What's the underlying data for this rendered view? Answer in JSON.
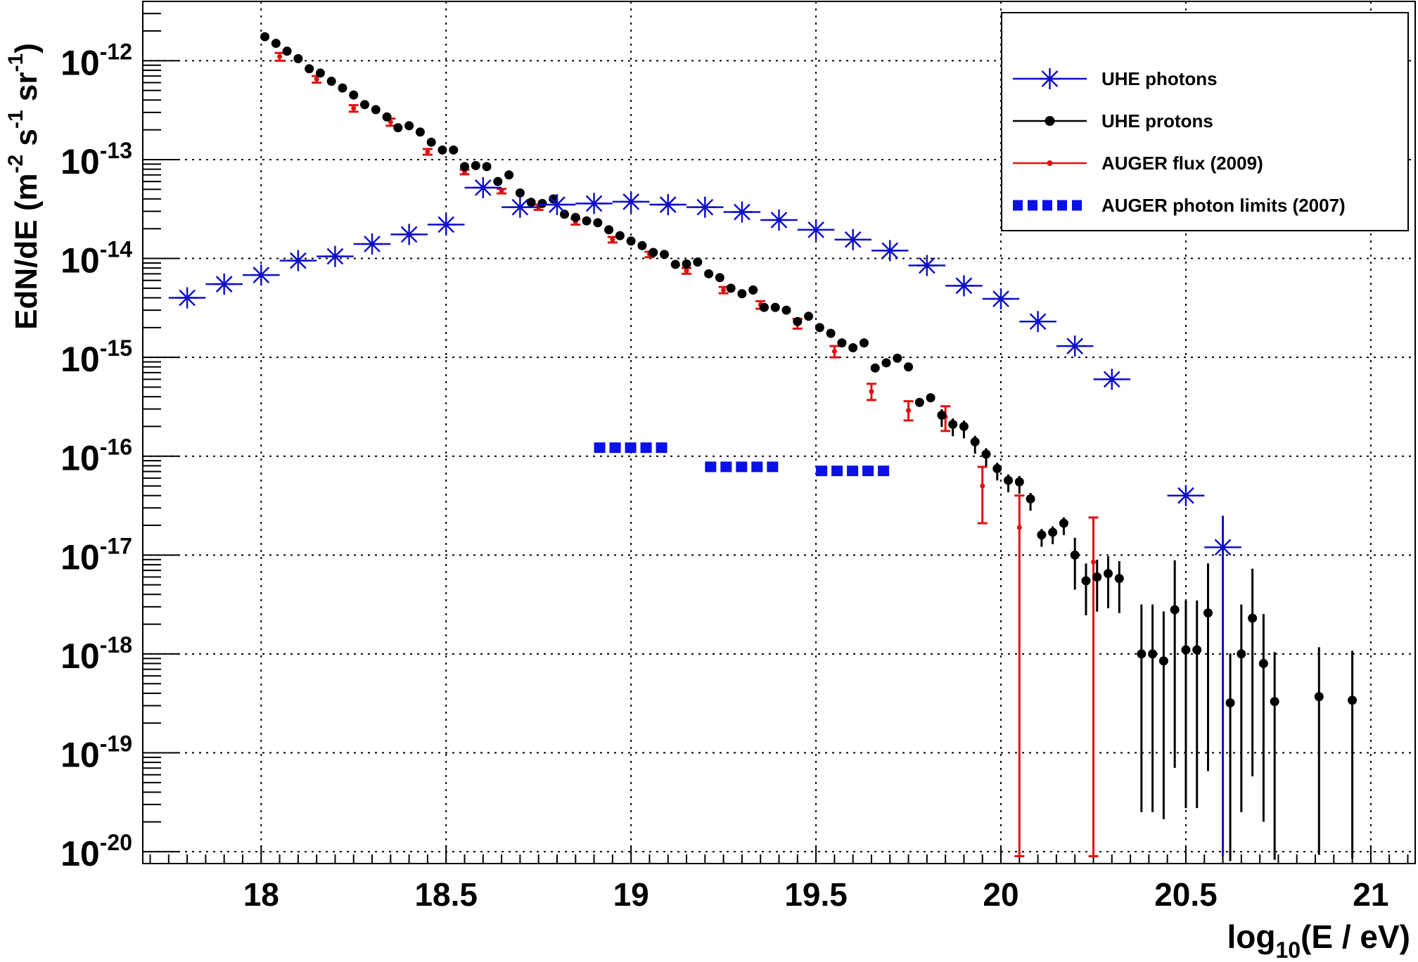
{
  "chart_data": {
    "type": "scatter",
    "xlabel": "log10(E / eV)",
    "ylabel": "EdN/dE (m-2 s-1 sr-1)",
    "x_label_parts": {
      "base": "log",
      "sub": "10",
      "rest": "(E / eV)"
    },
    "y_label_parts": [
      "EdN/dE (m",
      "-2",
      " s",
      "-1",
      " sr",
      "-1",
      ")"
    ],
    "xlim": [
      17.68,
      21.12
    ],
    "ylim_log10": [
      -20.12,
      -11.4
    ],
    "y_scale": "log",
    "grid": true,
    "legend_position": "top-right",
    "x_ticks": [
      "18",
      "18.5",
      "19",
      "19.5",
      "20",
      "20.5",
      "21"
    ],
    "y_ticks": [
      {
        "base": "10",
        "exp": "-12",
        "value": -12
      },
      {
        "base": "10",
        "exp": "-13",
        "value": -13
      },
      {
        "base": "10",
        "exp": "-14",
        "value": -14
      },
      {
        "base": "10",
        "exp": "-15",
        "value": -15
      },
      {
        "base": "10",
        "exp": "-16",
        "value": -16
      },
      {
        "base": "10",
        "exp": "-17",
        "value": -17
      },
      {
        "base": "10",
        "exp": "-18",
        "value": -18
      },
      {
        "base": "10",
        "exp": "-19",
        "value": -19
      },
      {
        "base": "10",
        "exp": "-20",
        "value": -20
      }
    ],
    "series": [
      {
        "name": "UHE photons",
        "style": "star",
        "color": "#1010c8",
        "xerr": 0.05,
        "points": [
          {
            "x": 17.8,
            "y": 4e-15
          },
          {
            "x": 17.9,
            "y": 5.5e-15
          },
          {
            "x": 18.0,
            "y": 6.8e-15
          },
          {
            "x": 18.1,
            "y": 9.5e-15
          },
          {
            "x": 18.2,
            "y": 1.05e-14
          },
          {
            "x": 18.3,
            "y": 1.4e-14
          },
          {
            "x": 18.4,
            "y": 1.75e-14
          },
          {
            "x": 18.5,
            "y": 2.2e-14
          },
          {
            "x": 18.6,
            "y": 5.2e-14
          },
          {
            "x": 18.7,
            "y": 3.3e-14
          },
          {
            "x": 18.8,
            "y": 3.5e-14
          },
          {
            "x": 18.9,
            "y": 3.6e-14
          },
          {
            "x": 19.0,
            "y": 3.75e-14
          },
          {
            "x": 19.1,
            "y": 3.5e-14
          },
          {
            "x": 19.2,
            "y": 3.3e-14
          },
          {
            "x": 19.3,
            "y": 2.95e-14
          },
          {
            "x": 19.4,
            "y": 2.45e-14
          },
          {
            "x": 19.5,
            "y": 1.95e-14
          },
          {
            "x": 19.6,
            "y": 1.55e-14
          },
          {
            "x": 19.7,
            "y": 1.2e-14
          },
          {
            "x": 19.8,
            "y": 8.5e-15
          },
          {
            "x": 19.9,
            "y": 5.3e-15
          },
          {
            "x": 20.0,
            "y": 3.9e-15
          },
          {
            "x": 20.1,
            "y": 2.3e-15
          },
          {
            "x": 20.2,
            "y": 1.3e-15
          },
          {
            "x": 20.3,
            "y": 6e-16
          },
          {
            "x": 20.5,
            "y": 4e-17
          },
          {
            "x": 20.6,
            "y": 1.2e-17,
            "ylo": 9e-21,
            "yhi": 2.5e-17
          }
        ]
      },
      {
        "name": "UHE protons",
        "style": "dot",
        "color": "#000000",
        "points": [
          {
            "x": 18.01,
            "y": 1.75e-12
          },
          {
            "x": 18.04,
            "y": 1.5e-12
          },
          {
            "x": 18.07,
            "y": 1.25e-12
          },
          {
            "x": 18.1,
            "y": 1.05e-12
          },
          {
            "x": 18.13,
            "y": 8.3e-13
          },
          {
            "x": 18.16,
            "y": 7.5e-13
          },
          {
            "x": 18.19,
            "y": 6.2e-13
          },
          {
            "x": 18.22,
            "y": 5.3e-13
          },
          {
            "x": 18.25,
            "y": 4.5e-13
          },
          {
            "x": 18.28,
            "y": 3.6e-13
          },
          {
            "x": 18.31,
            "y": 3.2e-13
          },
          {
            "x": 18.34,
            "y": 2.7e-13
          },
          {
            "x": 18.37,
            "y": 2.1e-13
          },
          {
            "x": 18.4,
            "y": 2.2e-13
          },
          {
            "x": 18.43,
            "y": 1.9e-13
          },
          {
            "x": 18.46,
            "y": 1.5e-13
          },
          {
            "x": 18.49,
            "y": 1.25e-13
          },
          {
            "x": 18.52,
            "y": 1.25e-13
          },
          {
            "x": 18.55,
            "y": 8.5e-14
          },
          {
            "x": 18.58,
            "y": 8.7e-14
          },
          {
            "x": 18.61,
            "y": 8.5e-14
          },
          {
            "x": 18.64,
            "y": 6e-14
          },
          {
            "x": 18.67,
            "y": 7e-14
          },
          {
            "x": 18.7,
            "y": 4.6e-14
          },
          {
            "x": 18.73,
            "y": 3.7e-14
          },
          {
            "x": 18.76,
            "y": 3.6e-14
          },
          {
            "x": 18.79,
            "y": 4e-14
          },
          {
            "x": 18.82,
            "y": 2.8e-14
          },
          {
            "x": 18.85,
            "y": 2.6e-14
          },
          {
            "x": 18.88,
            "y": 2.4e-14
          },
          {
            "x": 18.91,
            "y": 2.3e-14
          },
          {
            "x": 18.94,
            "y": 1.95e-14
          },
          {
            "x": 18.97,
            "y": 1.7e-14
          },
          {
            "x": 19.0,
            "y": 1.5e-14
          },
          {
            "x": 19.03,
            "y": 1.35e-14
          },
          {
            "x": 19.06,
            "y": 1.15e-14
          },
          {
            "x": 19.09,
            "y": 1.1e-14
          },
          {
            "x": 19.12,
            "y": 8.7e-15
          },
          {
            "x": 19.15,
            "y": 8.8e-15
          },
          {
            "x": 19.18,
            "y": 9.2e-15
          },
          {
            "x": 19.21,
            "y": 7e-15
          },
          {
            "x": 19.24,
            "y": 6.4e-15
          },
          {
            "x": 19.27,
            "y": 5e-15
          },
          {
            "x": 19.3,
            "y": 4.4e-15
          },
          {
            "x": 19.33,
            "y": 4.8e-15
          },
          {
            "x": 19.36,
            "y": 3.2e-15
          },
          {
            "x": 19.39,
            "y": 3.2e-15
          },
          {
            "x": 19.42,
            "y": 3e-15
          },
          {
            "x": 19.45,
            "y": 2.3e-15
          },
          {
            "x": 19.48,
            "y": 2.6e-15
          },
          {
            "x": 19.51,
            "y": 2e-15
          },
          {
            "x": 19.54,
            "y": 1.75e-15
          },
          {
            "x": 19.57,
            "y": 1.4e-15
          },
          {
            "x": 19.6,
            "y": 1.25e-15
          },
          {
            "x": 19.63,
            "y": 1.4e-15
          },
          {
            "x": 19.66,
            "y": 7.8e-16
          },
          {
            "x": 19.69,
            "y": 8.8e-16
          },
          {
            "x": 19.72,
            "y": 9.8e-16
          },
          {
            "x": 19.75,
            "y": 8e-16
          },
          {
            "x": 19.78,
            "y": 3.5e-16
          },
          {
            "x": 19.81,
            "y": 3.9e-16
          },
          {
            "x": 19.84,
            "y": 2.6e-16
          },
          {
            "x": 19.87,
            "y": 2.1e-16
          },
          {
            "x": 19.9,
            "y": 2e-16
          },
          {
            "x": 19.93,
            "y": 1.4e-16
          },
          {
            "x": 19.96,
            "y": 1.05e-16
          },
          {
            "x": 19.99,
            "y": 7.5e-17
          },
          {
            "x": 20.02,
            "y": 5.7e-17
          },
          {
            "x": 20.05,
            "y": 5.5e-17
          },
          {
            "x": 20.08,
            "y": 3.7e-17
          },
          {
            "x": 20.11,
            "y": 1.6e-17
          },
          {
            "x": 20.14,
            "y": 1.7e-17
          },
          {
            "x": 20.17,
            "y": 2.1e-17
          },
          {
            "x": 20.2,
            "y": 1e-17
          },
          {
            "x": 20.23,
            "y": 5.5e-18
          },
          {
            "x": 20.26,
            "y": 6e-18
          },
          {
            "x": 20.29,
            "y": 6.5e-18
          },
          {
            "x": 20.32,
            "y": 5.8e-18
          },
          {
            "x": 20.38,
            "y": 1e-18
          },
          {
            "x": 20.41,
            "y": 1e-18
          },
          {
            "x": 20.44,
            "y": 8.5e-19
          },
          {
            "x": 20.47,
            "y": 2.8e-18
          },
          {
            "x": 20.5,
            "y": 1.1e-18
          },
          {
            "x": 20.53,
            "y": 1.1e-18
          },
          {
            "x": 20.56,
            "y": 2.6e-18
          },
          {
            "x": 20.62,
            "y": 3.2e-19
          },
          {
            "x": 20.65,
            "y": 1e-18
          },
          {
            "x": 20.68,
            "y": 2.3e-18
          },
          {
            "x": 20.71,
            "y": 8e-19
          },
          {
            "x": 20.74,
            "y": 3.3e-19
          },
          {
            "x": 20.86,
            "y": 3.7e-19
          },
          {
            "x": 20.95,
            "y": 3.4e-19
          }
        ]
      },
      {
        "name": "AUGER flux (2009)",
        "style": "errorbar",
        "color": "#e01010",
        "points": [
          {
            "x": 18.05,
            "y": 1.1e-12,
            "ylo": 1e-12,
            "yhi": 1.2e-12
          },
          {
            "x": 18.15,
            "y": 6.5e-13,
            "ylo": 6e-13,
            "yhi": 7e-13
          },
          {
            "x": 18.25,
            "y": 3.3e-13,
            "ylo": 3.05e-13,
            "yhi": 3.55e-13
          },
          {
            "x": 18.35,
            "y": 2.4e-13,
            "ylo": 2.2e-13,
            "yhi": 2.6e-13
          },
          {
            "x": 18.45,
            "y": 1.2e-13,
            "ylo": 1.12e-13,
            "yhi": 1.28e-13
          },
          {
            "x": 18.55,
            "y": 7.5e-14,
            "ylo": 7.1e-14,
            "yhi": 7.9e-14
          },
          {
            "x": 18.65,
            "y": 4.8e-14,
            "ylo": 4.55e-14,
            "yhi": 5.05e-14
          },
          {
            "x": 18.75,
            "y": 3.3e-14,
            "ylo": 3.1e-14,
            "yhi": 3.5e-14
          },
          {
            "x": 18.85,
            "y": 2.35e-14,
            "ylo": 2.2e-14,
            "yhi": 2.5e-14
          },
          {
            "x": 18.95,
            "y": 1.55e-14,
            "ylo": 1.45e-14,
            "yhi": 1.65e-14
          },
          {
            "x": 19.05,
            "y": 1.1e-14,
            "ylo": 1.03e-14,
            "yhi": 1.17e-14
          },
          {
            "x": 19.15,
            "y": 7.5e-15,
            "ylo": 7e-15,
            "yhi": 8e-15
          },
          {
            "x": 19.25,
            "y": 4.8e-15,
            "ylo": 4.45e-15,
            "yhi": 5.15e-15
          },
          {
            "x": 19.35,
            "y": 3.4e-15,
            "ylo": 3.1e-15,
            "yhi": 3.7e-15
          },
          {
            "x": 19.45,
            "y": 2.2e-15,
            "ylo": 1.95e-15,
            "yhi": 2.45e-15
          },
          {
            "x": 19.55,
            "y": 1.15e-15,
            "ylo": 1e-15,
            "yhi": 1.3e-15
          },
          {
            "x": 19.65,
            "y": 4.5e-16,
            "ylo": 3.7e-16,
            "yhi": 5.4e-16
          },
          {
            "x": 19.75,
            "y": 2.9e-16,
            "ylo": 2.3e-16,
            "yhi": 3.6e-16
          },
          {
            "x": 19.85,
            "y": 2.5e-16,
            "ylo": 1.8e-16,
            "yhi": 3.2e-16
          },
          {
            "x": 19.95,
            "y": 5e-17,
            "ylo": 2.1e-17,
            "yhi": 7.8e-17
          },
          {
            "x": 20.05,
            "y": 1.9e-17,
            "ylo": 9e-21,
            "yhi": 4e-17
          },
          {
            "x": 20.25,
            "y": 8.5e-18,
            "ylo": 9e-21,
            "yhi": 2.4e-17
          }
        ]
      },
      {
        "name": "AUGER photon limits (2007)",
        "style": "dashed-limit",
        "color": "#0a10e8",
        "segments": [
          {
            "x0": 18.9,
            "x1": 19.1,
            "y": 1.22e-16
          },
          {
            "x0": 19.2,
            "x1": 19.4,
            "y": 7.8e-17
          },
          {
            "x0": 19.5,
            "x1": 19.7,
            "y": 7.1e-17
          }
        ]
      }
    ]
  }
}
